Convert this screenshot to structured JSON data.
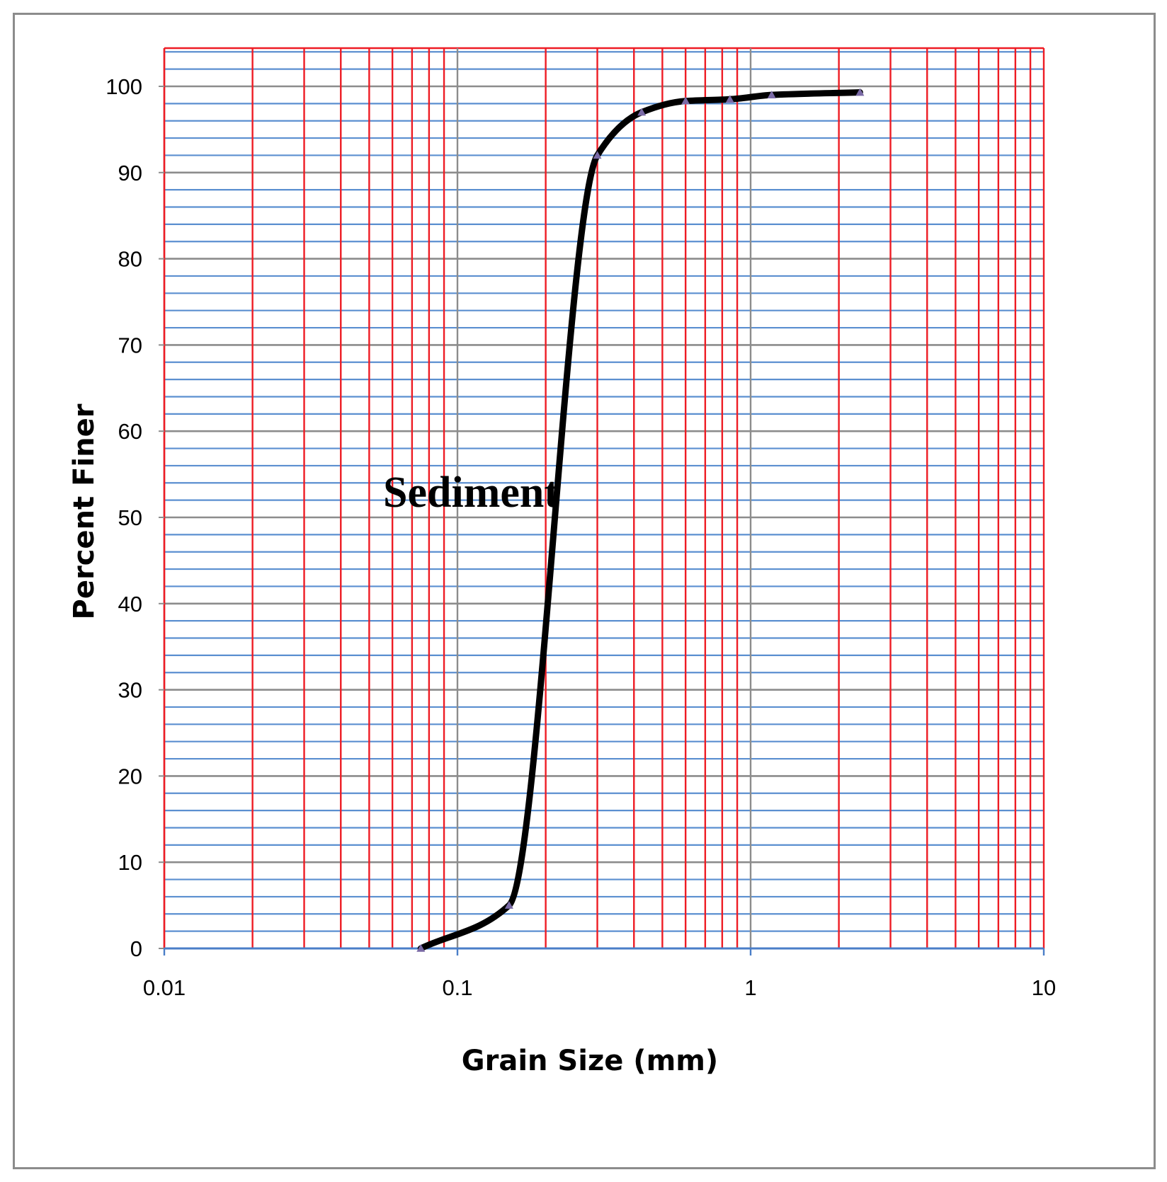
{
  "chart_data": {
    "type": "line",
    "title": "",
    "xlabel": "Grain Size (mm)",
    "ylabel": "Percent Finer",
    "xscale": "log",
    "xlim": [
      0.01,
      10
    ],
    "ylim": [
      0,
      105
    ],
    "xticks": [
      "0.01",
      "0.1",
      "1",
      "10"
    ],
    "yticks": [
      "0",
      "10",
      "20",
      "30",
      "40",
      "50",
      "60",
      "70",
      "80",
      "90",
      "100"
    ],
    "grid": true,
    "legend": "none",
    "annotation": "Sediment",
    "series": [
      {
        "name": "Sediment",
        "x": [
          0.075,
          0.15,
          0.3,
          0.425,
          0.6,
          0.85,
          1.18,
          2.36
        ],
        "y": [
          0,
          5,
          92,
          97,
          98.3,
          98.5,
          99,
          99.3
        ]
      }
    ],
    "colors": {
      "line": "#000000",
      "marker": "#7a6aa6",
      "grid_vertical": "#ee1c24",
      "grid_horizontal": "#5b8fd0",
      "grid_major": "#8c8c8c",
      "axis": "#4a7ec8"
    }
  }
}
